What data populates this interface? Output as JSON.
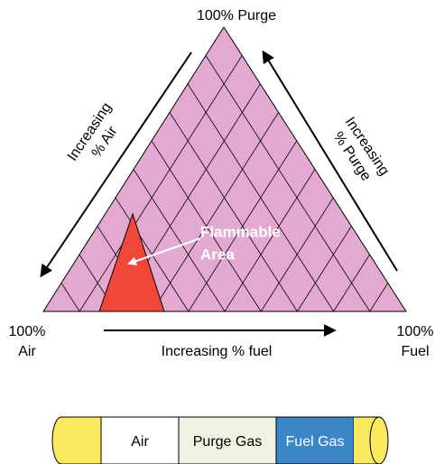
{
  "diagram": {
    "apex_label": "100% Purge",
    "left_side_label": [
      "Increasing",
      "% Air"
    ],
    "right_side_label": [
      "Increasing",
      "% Purge"
    ],
    "left_corner_label": [
      "100%",
      "Air"
    ],
    "right_corner_label": [
      "100%",
      "Fuel"
    ],
    "bottom_label": "Increasing % fuel",
    "region_label": [
      "Flammable",
      "Area"
    ]
  },
  "pipe": {
    "segments": [
      "Air",
      "Purge Gas",
      "Fuel Gas"
    ]
  }
}
